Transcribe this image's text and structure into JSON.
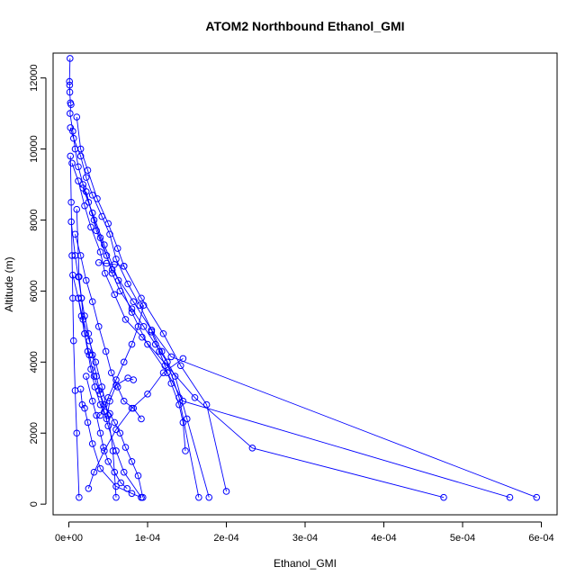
{
  "chart_data": {
    "type": "line",
    "title": "ATOM2 Northbound Ethanol_GMI",
    "xlabel": "Ethanol_GMI",
    "ylabel": "Altitude (m)",
    "xlim": [
      -2e-05,
      0.00062
    ],
    "ylim": [
      -300,
      12700
    ],
    "xticks": [
      0,
      0.0001,
      0.0002,
      0.0003,
      0.0004,
      0.0005,
      0.0006
    ],
    "xtick_labels": [
      "0e+00",
      "1e-04",
      "2e-04",
      "3e-04",
      "4e-04",
      "5e-04",
      "6e-04"
    ],
    "yticks": [
      0,
      2000,
      4000,
      6000,
      8000,
      10000,
      12000
    ],
    "ytick_labels": [
      "0",
      "2000",
      "4000",
      "6000",
      "8000",
      "10000",
      "12000"
    ],
    "grid": false,
    "legend": "none",
    "color": "#0000ff",
    "marker": "open-circle",
    "series": [
      {
        "x": [
          1.5e-06,
          8e-07,
          1e-06,
          1.2e-06,
          2e-06,
          2.8e-06,
          1.5e-06,
          5e-06,
          8e-06,
          1.2e-05,
          1.8e-05,
          2.5e-05,
          3.2e-05,
          4e-05,
          4.8e-05,
          5.5e-05,
          6.5e-05,
          8e-05,
          9.5e-05,
          0.00011,
          0.000125,
          0.00014,
          0.000165
        ],
        "y": [
          12550,
          11900,
          11800,
          11600,
          11300,
          11250,
          11000,
          10500,
          10000,
          9500,
          9000,
          8500,
          8000,
          7500,
          7000,
          6500,
          6000,
          5500,
          5000,
          4500,
          4000,
          3000,
          190
        ]
      },
      {
        "x": [
          2e-06,
          6e-06,
          1.5e-05,
          2.2e-05,
          3e-05,
          4.2e-05,
          5.2e-05,
          6e-05,
          7.5e-05,
          9e-05,
          0.000105,
          0.000118,
          0.000135,
          0.00015,
          0.000178
        ],
        "y": [
          10600,
          10300,
          9800,
          9200,
          8700,
          8100,
          7600,
          6900,
          6200,
          5600,
          4900,
          4300,
          3600,
          2400,
          190
        ]
      },
      {
        "x": [
          1e-05,
          1.5e-05,
          2.4e-05,
          3.6e-05,
          5e-05,
          6.2e-05,
          7e-05,
          9.2e-05,
          0.00012,
          0.000142,
          0.000175,
          0.0002
        ],
        "y": [
          10900,
          10000,
          9400,
          8600,
          7900,
          7200,
          6700,
          5800,
          4800,
          3900,
          2800,
          360
        ]
      },
      {
        "x": [
          4e-06,
          1.2e-05,
          2e-05,
          2.8e-05,
          4e-05,
          4.6e-05,
          5.8e-05,
          7.2e-05,
          9.3e-05,
          0.00016,
          0.000233,
          0.000476
        ],
        "y": [
          9600,
          9100,
          8400,
          7800,
          7100,
          6500,
          5900,
          5200,
          4700,
          3000,
          1580,
          190
        ]
      },
      {
        "x": [
          1.8e-05,
          3e-05,
          4.5e-05,
          6.3e-05,
          8e-05,
          0.0001,
          0.000125,
          0.000145,
          0.00056
        ],
        "y": [
          8900,
          8200,
          7300,
          6300,
          5400,
          4500,
          3700,
          2900,
          190
        ]
      },
      {
        "x": [
          2.2e-05,
          3.5e-05,
          5.5e-05,
          8.2e-05,
          0.000105,
          0.00013,
          0.000594
        ],
        "y": [
          8800,
          7700,
          6600,
          5700,
          4900,
          4150,
          190
        ]
      },
      {
        "x": [
          3e-06,
          8e-06,
          1.2e-05,
          1.6e-05,
          2e-05,
          2.5e-05,
          3e-05,
          3.5e-05,
          4e-05,
          4.5e-05,
          5e-05,
          6e-05,
          7e-05,
          9.2e-05
        ],
        "y": [
          7950,
          7000,
          6400,
          5800,
          5300,
          4800,
          4200,
          3600,
          3100,
          2600,
          2200,
          1500,
          900,
          190
        ]
      },
      {
        "x": [
          5e-06,
          1.2e-05,
          1.8e-05,
          2.6e-05,
          3.4e-05,
          4.2e-05,
          5e-05,
          5.6e-05,
          6e-05
        ],
        "y": [
          6450,
          5800,
          5200,
          4600,
          4000,
          3300,
          2500,
          1500,
          190
        ]
      },
      {
        "x": [
          8e-06,
          1.5e-05,
          2.2e-05,
          3e-05,
          3.8e-05,
          4.7e-05,
          5.4e-05,
          6.2e-05,
          7e-05,
          8.2e-05,
          9.2e-05
        ],
        "y": [
          7600,
          7000,
          6300,
          5700,
          5000,
          4300,
          3700,
          3300,
          2900,
          2700,
          2400
        ]
      },
      {
        "x": [
          1e-05,
          1.3e-05,
          1.6e-05,
          2e-05,
          2.6e-05,
          3.2e-05,
          3.8e-05,
          4.5e-05,
          5.2e-05,
          5.8e-05,
          6.5e-05,
          7.2e-05,
          8e-05,
          8.8e-05,
          9.4e-05
        ],
        "y": [
          8300,
          6400,
          5800,
          4800,
          4200,
          3600,
          3200,
          2800,
          2550,
          2300,
          2000,
          1600,
          1200,
          800,
          190
        ]
      },
      {
        "x": [
          2e-06,
          3e-06,
          4e-06,
          5e-06,
          6e-06,
          8e-06,
          1e-05,
          1.3e-05
        ],
        "y": [
          9800,
          8500,
          7000,
          5800,
          4600,
          3200,
          2000,
          190
        ]
      },
      {
        "x": [
          1.2e-05,
          1.6e-05,
          2e-05,
          2.4e-05,
          2.8e-05,
          3.3e-05,
          4e-05,
          4.8e-05,
          5.2e-05,
          6e-05,
          7.5e-05,
          8.2e-05
        ],
        "y": [
          5800,
          5300,
          4800,
          4300,
          3800,
          3300,
          2800,
          2400,
          2900,
          3350,
          3550,
          3500
        ]
      },
      {
        "x": [
          1.5e-05,
          1.7e-05,
          2e-05,
          2.4e-05,
          3e-05,
          4e-05,
          6e-05,
          8e-05,
          9.2e-05
        ],
        "y": [
          3240,
          2800,
          2700,
          2300,
          1700,
          1000,
          500,
          300,
          190
        ]
      },
      {
        "x": [
          2.2e-05,
          3e-05,
          3.5e-05,
          4e-05,
          4.4e-05,
          5e-05,
          5.8e-05,
          6.6e-05,
          7.4e-05
        ],
        "y": [
          3600,
          2900,
          2500,
          2000,
          1600,
          1200,
          900,
          600,
          440
        ]
      },
      {
        "x": [
          9.5e-05,
          8.8e-05,
          8e-05,
          7e-05,
          6e-05,
          5e-05,
          4e-05
        ],
        "y": [
          5600,
          5000,
          4500,
          4000,
          3500,
          3000,
          2500
        ]
      },
      {
        "x": [
          0.000105,
          0.000115,
          0.000122,
          0.00013,
          0.00014,
          0.000145,
          0.000148
        ],
        "y": [
          4850,
          4300,
          3900,
          3400,
          2800,
          2300,
          1500
        ]
      },
      {
        "x": [
          7e-05,
          5.8e-05,
          4.8e-05,
          3.8e-05
        ],
        "y": [
          6700,
          6750,
          6780,
          6800
        ]
      },
      {
        "x": [
          2.5e-05,
          3.2e-05,
          4.5e-05,
          6e-05,
          8e-05,
          0.0001,
          0.00012,
          0.000145
        ],
        "y": [
          440,
          900,
          1500,
          2100,
          2700,
          3100,
          3700,
          4100
        ]
      }
    ]
  }
}
